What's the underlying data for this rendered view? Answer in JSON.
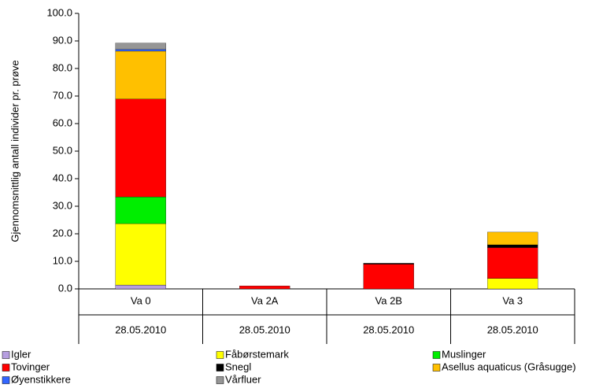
{
  "chart_data": {
    "type": "stacked_bar",
    "y_label": "Gjennomsnittlig antall individer pr. prøve",
    "categories": [
      "Va 0",
      "Va 2A",
      "Va 2B",
      "Va 3"
    ],
    "sub_categories": [
      "28.05.2010",
      "28.05.2010",
      "28.05.2010",
      "28.05.2010"
    ],
    "series": [
      {
        "name": "Igler",
        "color": "#b69ee0",
        "values": [
          1.4,
          0,
          0,
          0
        ]
      },
      {
        "name": "Fåbørstemark",
        "color": "#ffff00",
        "values": [
          22.3,
          0,
          0,
          3.8
        ]
      },
      {
        "name": "Muslinger",
        "color": "#00ee00",
        "values": [
          9.7,
          0,
          0,
          0
        ]
      },
      {
        "name": "Tovinger",
        "color": "#ff0000",
        "values": [
          35.5,
          1.1,
          9.0,
          11.2
        ]
      },
      {
        "name": "Snegl",
        "color": "#000000",
        "values": [
          0,
          0,
          0.3,
          1.0
        ]
      },
      {
        "name": "Asellus aquaticus (Gråsugge)",
        "color": "#ffc000",
        "values": [
          17.4,
          0,
          0,
          4.6
        ]
      },
      {
        "name": "Øyenstikkere",
        "color": "#3366ff",
        "values": [
          0.6,
          0,
          0,
          0
        ]
      },
      {
        "name": "Vårfluer",
        "color": "#969696",
        "values": [
          2.3,
          0,
          0,
          0
        ]
      }
    ],
    "ylim": [
      0,
      100
    ],
    "yticks": [
      {
        "value": 0,
        "label": "0.0"
      },
      {
        "value": 10,
        "label": "10.0"
      },
      {
        "value": 20,
        "label": "20.0"
      },
      {
        "value": 30,
        "label": "30.0"
      },
      {
        "value": 40,
        "label": "40.0"
      },
      {
        "value": 50,
        "label": "50.0"
      },
      {
        "value": 60,
        "label": "60.0"
      },
      {
        "value": 70,
        "label": "70.0"
      },
      {
        "value": 80,
        "label": "80.0"
      },
      {
        "value": 90,
        "label": "90.0"
      },
      {
        "value": 100,
        "label": "100.0"
      }
    ],
    "legend": "bottom"
  }
}
